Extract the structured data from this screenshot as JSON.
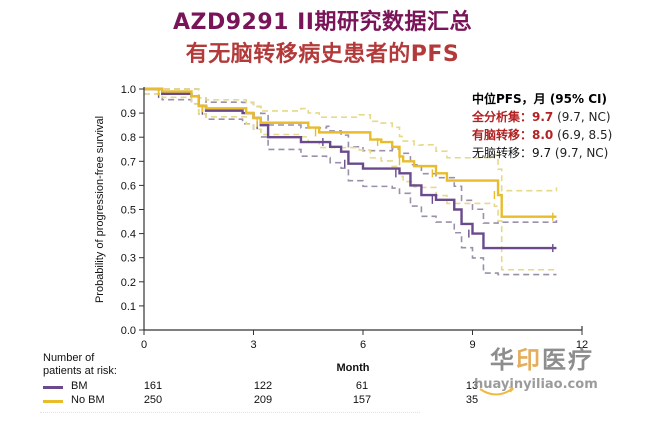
{
  "header": {
    "title_line1": "AZD9291 II期研究数据汇总",
    "title_line2": "有无脑转移病史患者的PFS"
  },
  "median_pfs": {
    "header": "中位PFS，月 (95% CI)",
    "rows": [
      {
        "label": "全分析集：",
        "value": "9.7",
        "ci": " (9.7, NC)",
        "style": "red"
      },
      {
        "label": "有脑转移：",
        "value": "8.0",
        "ci": " (6.9, 8.5)",
        "style": "red"
      },
      {
        "label": "无脑转移：",
        "value": "9.7",
        "ci": " (9.7, NC)",
        "style": "plain"
      }
    ]
  },
  "risk_table": {
    "title_line1": "Number of",
    "title_line2": "patients at risk:",
    "rows": [
      {
        "label": "BM",
        "color": "#6a4a8c",
        "values": [
          "161",
          "122",
          "61",
          "13"
        ]
      },
      {
        "label": "No BM",
        "color": "#e8bc2a",
        "values": [
          "250",
          "209",
          "157",
          "35"
        ]
      }
    ]
  },
  "watermark": {
    "cn_a": "华",
    "cn_b": "印",
    "cn_c": "医疗",
    "url": "huayinyiliao.com"
  },
  "chart_data": {
    "type": "line",
    "subtype": "kaplan-meier step",
    "title": "AZD9291 II期研究数据汇总 — 有无脑转移病史患者的PFS",
    "xlabel": "Month",
    "ylabel": "Probability of progression-free survival",
    "xlim": [
      0,
      12
    ],
    "ylim": [
      0.0,
      1.0
    ],
    "x_ticks": [
      "0",
      "3",
      "6",
      "9",
      "12"
    ],
    "y_ticks": [
      "0.0",
      "0.1",
      "0.2",
      "0.3",
      "0.4",
      "0.5",
      "0.6",
      "0.7",
      "0.8",
      "0.9",
      "1.0"
    ],
    "grid": false,
    "legend_position": "below (risk table)",
    "colors": {
      "BM": "#6a4a8c",
      "No BM": "#e8bc2a",
      "ci": "#b0a8b8"
    },
    "series": [
      {
        "name": "BM",
        "median": 8.0,
        "median_ci": [
          6.9,
          8.5
        ],
        "points": [
          [
            0,
            1.0
          ],
          [
            0.5,
            0.98
          ],
          [
            1.3,
            0.97
          ],
          [
            1.5,
            0.93
          ],
          [
            1.7,
            0.91
          ],
          [
            2.7,
            0.9
          ],
          [
            3.0,
            0.88
          ],
          [
            3.2,
            0.85
          ],
          [
            3.4,
            0.8
          ],
          [
            4.3,
            0.78
          ],
          [
            5.0,
            0.78
          ],
          [
            5.1,
            0.76
          ],
          [
            5.4,
            0.74
          ],
          [
            5.6,
            0.69
          ],
          [
            6.0,
            0.67
          ],
          [
            6.8,
            0.67
          ],
          [
            7.0,
            0.65
          ],
          [
            7.3,
            0.6
          ],
          [
            7.6,
            0.56
          ],
          [
            8.0,
            0.54
          ],
          [
            8.5,
            0.5
          ],
          [
            8.7,
            0.44
          ],
          [
            9.0,
            0.4
          ],
          [
            9.3,
            0.34
          ],
          [
            9.7,
            0.34
          ],
          [
            11.3,
            0.34
          ]
        ]
      },
      {
        "name": "No BM",
        "median": 9.7,
        "median_ci": [
          9.7,
          null
        ],
        "points": [
          [
            0,
            1.0
          ],
          [
            0.5,
            0.99
          ],
          [
            1.3,
            0.97
          ],
          [
            1.5,
            0.93
          ],
          [
            1.7,
            0.92
          ],
          [
            2.8,
            0.9
          ],
          [
            3.0,
            0.88
          ],
          [
            3.2,
            0.86
          ],
          [
            4.3,
            0.86
          ],
          [
            4.5,
            0.84
          ],
          [
            4.8,
            0.82
          ],
          [
            5.9,
            0.82
          ],
          [
            6.2,
            0.79
          ],
          [
            6.5,
            0.78
          ],
          [
            6.8,
            0.76
          ],
          [
            7.0,
            0.72
          ],
          [
            7.1,
            0.7
          ],
          [
            7.4,
            0.68
          ],
          [
            7.6,
            0.68
          ],
          [
            8.0,
            0.65
          ],
          [
            8.3,
            0.62
          ],
          [
            9.6,
            0.62
          ],
          [
            9.7,
            0.56
          ],
          [
            9.8,
            0.47
          ],
          [
            11.3,
            0.47
          ]
        ]
      }
    ],
    "median_pfs_months": {
      "overall": 9.7,
      "BM": 8.0,
      "No BM": 9.7
    },
    "at_risk": {
      "months": [
        0,
        3,
        6,
        9
      ],
      "BM": [
        161,
        122,
        61,
        13
      ],
      "No BM": [
        250,
        209,
        157,
        35
      ]
    }
  }
}
